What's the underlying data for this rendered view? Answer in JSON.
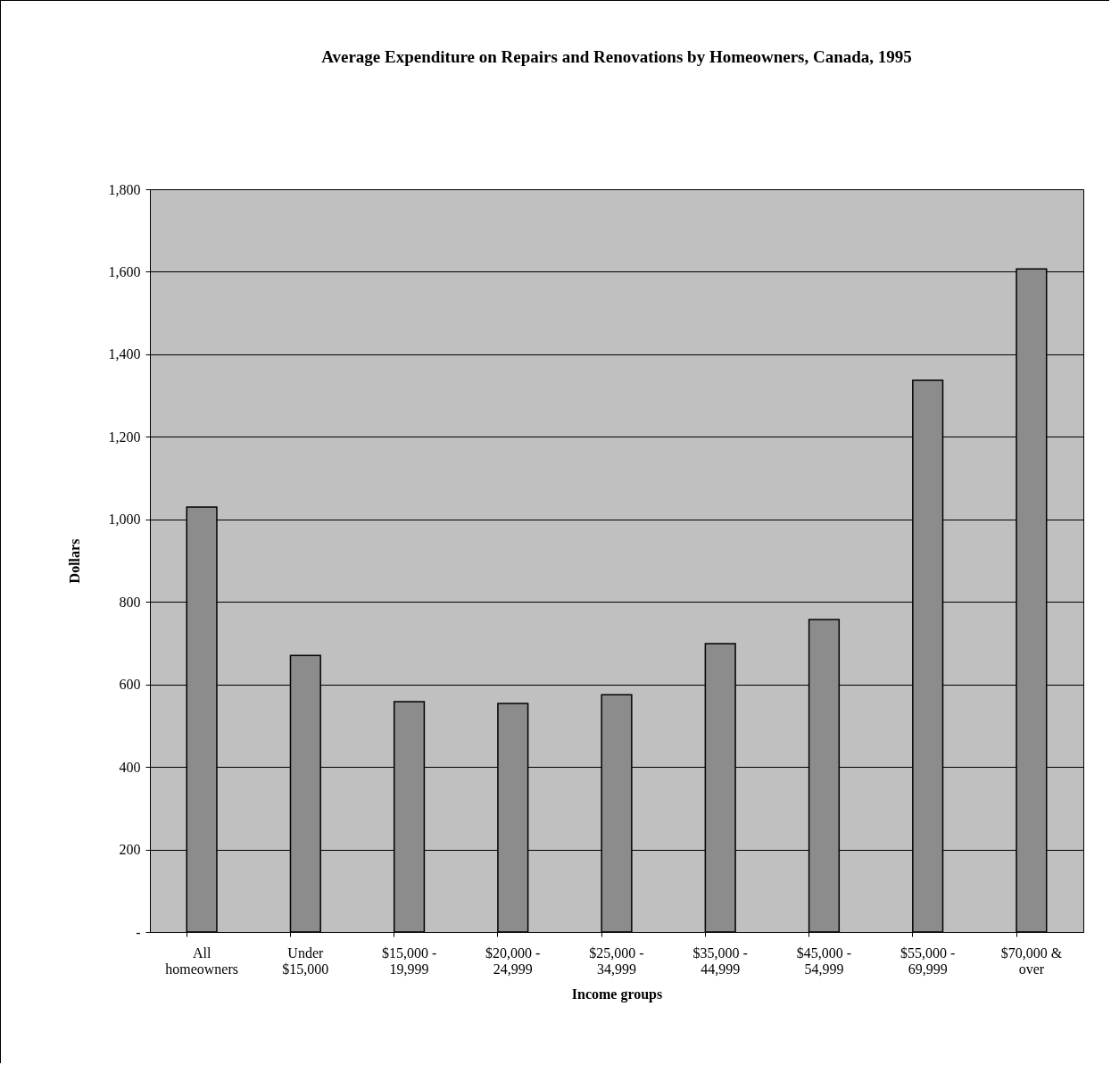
{
  "chart_data": {
    "type": "bar",
    "title": "Average Expenditure on Repairs and Renovations by Homeowners, Canada, 1995",
    "xlabel": "Income groups",
    "ylabel": "Dollars",
    "categories": [
      "All homeowners",
      "Under $15,000",
      "$15,000 - 19,999",
      "$20,000 - 24,999",
      "$25,000 - 34,999",
      "$35,000 - 44,999",
      "$45,000 - 54,999",
      "$55,000 - 69,999",
      "$70,000 & over"
    ],
    "values": [
      1030,
      670,
      558,
      554,
      575,
      699,
      757,
      1337,
      1607
    ],
    "color": "#8c8c8c",
    "ylim": [
      0,
      1800
    ],
    "yticks": [
      {
        "value": 0,
        "label": "-"
      },
      200,
      400,
      600,
      800,
      {
        "value": 1000,
        "label": "1,000"
      },
      {
        "value": 1200,
        "label": "1,200"
      },
      {
        "value": 1400,
        "label": "1,400"
      },
      {
        "value": 1600,
        "label": "1,600"
      },
      {
        "value": 1800,
        "label": "1,800"
      }
    ],
    "grid": "y"
  }
}
